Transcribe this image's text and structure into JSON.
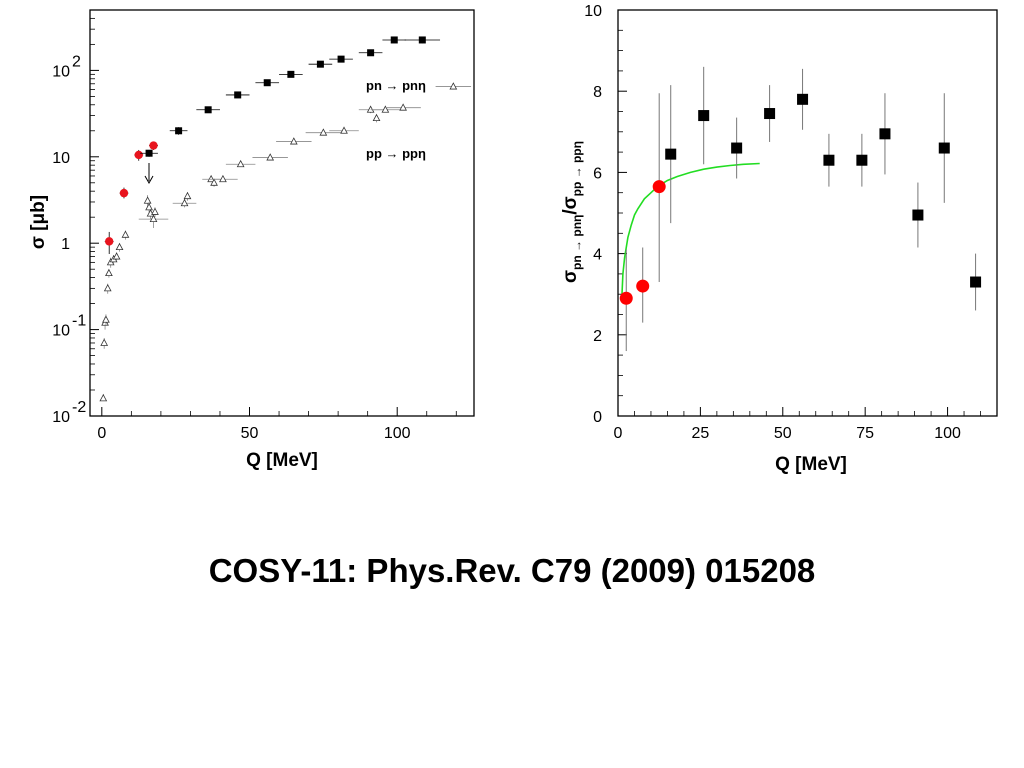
{
  "slide": {
    "citation": "COSY-11: Phys.Rev. C79 (2009) 015208"
  },
  "chart_data": [
    {
      "type": "scatter",
      "title": "",
      "xlabel": "Q [MeV]",
      "ylabel": "σ [μb]",
      "xlim": [
        -4,
        126
      ],
      "ylim": [
        0.01,
        500
      ],
      "yscale": "log",
      "grid": false,
      "x_ticks": [
        "0",
        "50",
        "100"
      ],
      "y_ticks": [
        "10",
        "10",
        "1",
        "10",
        "10"
      ],
      "y_tick_exponents": [
        "-2",
        "-1",
        "",
        "",
        "2"
      ],
      "annotations": [
        "pn → pnη",
        "pp → ppη"
      ],
      "colors": {
        "pn_cosy": "#e8141e",
        "pn_celsius": "#000000",
        "pp": "#444444"
      },
      "series": [
        {
          "marker": "red-circle",
          "points": [
            {
              "x": 2.5,
              "y": 1.05,
              "xerr": 1.5,
              "ylo": 0.75,
              "yhi": 1.35
            },
            {
              "x": 7.5,
              "y": 3.8,
              "xerr": 1.5,
              "ylo": 3.3,
              "yhi": 4.4
            },
            {
              "x": 12.5,
              "y": 10.5,
              "xerr": 1.5,
              "ylo": 9.0,
              "yhi": 12.0
            },
            {
              "x": 17.5,
              "y": 13.5,
              "xerr": 1.5,
              "ylo": 12.0,
              "yhi": 15.0
            }
          ]
        },
        {
          "marker": "black-square",
          "points": [
            {
              "x": 16,
              "y": 11,
              "xerr": 3,
              "ylo": 10,
              "yhi": 12
            },
            {
              "x": 26,
              "y": 20,
              "xerr": 3,
              "ylo": 18,
              "yhi": 22
            },
            {
              "x": 36,
              "y": 35,
              "xerr": 4,
              "ylo": 33,
              "yhi": 37
            },
            {
              "x": 46,
              "y": 52,
              "xerr": 4,
              "ylo": 49,
              "yhi": 55
            },
            {
              "x": 56,
              "y": 72,
              "xerr": 4,
              "ylo": 68,
              "yhi": 76
            },
            {
              "x": 64,
              "y": 90,
              "xerr": 4,
              "ylo": 85,
              "yhi": 95
            },
            {
              "x": 74,
              "y": 118,
              "xerr": 4,
              "ylo": 111,
              "yhi": 125
            },
            {
              "x": 81,
              "y": 135,
              "xerr": 4,
              "ylo": 127,
              "yhi": 143
            },
            {
              "x": 91,
              "y": 160,
              "xerr": 4,
              "ylo": 150,
              "yhi": 170
            },
            {
              "x": 99,
              "y": 225,
              "xerr": 4,
              "ylo": 212,
              "yhi": 238
            },
            {
              "x": 108.5,
              "y": 225,
              "xerr": 6,
              "ylo": 205,
              "yhi": 245
            }
          ]
        },
        {
          "marker": "open-triangle",
          "points": [
            {
              "x": 0.5,
              "y": 0.016,
              "xerr": 0,
              "ylo": 0.015,
              "yhi": 0.018
            },
            {
              "x": 0.8,
              "y": 0.07,
              "xerr": 0,
              "ylo": 0.06,
              "yhi": 0.08
            },
            {
              "x": 1.1,
              "y": 0.12,
              "xerr": 0,
              "ylo": 0.1,
              "yhi": 0.14
            },
            {
              "x": 1.4,
              "y": 0.13,
              "xerr": 0,
              "ylo": 0.11,
              "yhi": 0.15
            },
            {
              "x": 2.0,
              "y": 0.3,
              "xerr": 0,
              "ylo": 0.26,
              "yhi": 0.34
            },
            {
              "x": 2.4,
              "y": 0.45,
              "xerr": 0,
              "ylo": 0.4,
              "yhi": 0.5
            },
            {
              "x": 3.0,
              "y": 0.6,
              "xerr": 0,
              "ylo": 0.52,
              "yhi": 0.68
            },
            {
              "x": 4.0,
              "y": 0.65,
              "xerr": 0,
              "ylo": 0.57,
              "yhi": 0.73
            },
            {
              "x": 5.0,
              "y": 0.7,
              "xerr": 0,
              "ylo": 0.62,
              "yhi": 0.78
            },
            {
              "x": 6.0,
              "y": 0.9,
              "xerr": 0,
              "ylo": 0.8,
              "yhi": 1.0
            },
            {
              "x": 8.0,
              "y": 1.25,
              "xerr": 0,
              "ylo": 1.1,
              "yhi": 1.4
            },
            {
              "x": 15.5,
              "y": 3.1,
              "xerr": 0,
              "ylo": 2.6,
              "yhi": 3.6
            },
            {
              "x": 16.0,
              "y": 2.6,
              "xerr": 0,
              "ylo": 2.2,
              "yhi": 3.0
            },
            {
              "x": 16.5,
              "y": 2.2,
              "xerr": 0,
              "ylo": 1.9,
              "yhi": 2.5
            },
            {
              "x": 17.5,
              "y": 1.9,
              "xerr": 5,
              "ylo": 1.5,
              "yhi": 2.3
            },
            {
              "x": 18.0,
              "y": 2.3,
              "xerr": 0,
              "ylo": 2.0,
              "yhi": 2.6
            },
            {
              "x": 28.0,
              "y": 2.9,
              "xerr": 4,
              "ylo": 2.6,
              "yhi": 3.3
            },
            {
              "x": 29.0,
              "y": 3.5,
              "xerr": 0,
              "ylo": 3.1,
              "yhi": 3.9
            },
            {
              "x": 37.0,
              "y": 5.5,
              "xerr": 3,
              "ylo": 5.1,
              "yhi": 5.9
            },
            {
              "x": 38.0,
              "y": 5.0,
              "xerr": 0,
              "ylo": 4.5,
              "yhi": 5.5
            },
            {
              "x": 41.0,
              "y": 5.5,
              "xerr": 5,
              "ylo": 5.2,
              "yhi": 5.8
            },
            {
              "x": 47.0,
              "y": 8.2,
              "xerr": 5,
              "ylo": 7.7,
              "yhi": 8.7
            },
            {
              "x": 57.0,
              "y": 9.8,
              "xerr": 6,
              "ylo": 9.2,
              "yhi": 10.4
            },
            {
              "x": 65.0,
              "y": 15,
              "xerr": 6,
              "ylo": 14,
              "yhi": 16
            },
            {
              "x": 75.0,
              "y": 19,
              "xerr": 6,
              "ylo": 18,
              "yhi": 20
            },
            {
              "x": 82.0,
              "y": 20,
              "xerr": 5,
              "ylo": 19,
              "yhi": 21
            },
            {
              "x": 91.0,
              "y": 35,
              "xerr": 4,
              "ylo": 32,
              "yhi": 38
            },
            {
              "x": 93.0,
              "y": 28,
              "xerr": 0,
              "ylo": 25,
              "yhi": 31
            },
            {
              "x": 96.0,
              "y": 35,
              "xerr": 5,
              "ylo": 33,
              "yhi": 37
            },
            {
              "x": 102.0,
              "y": 37,
              "xerr": 6,
              "ylo": 35,
              "yhi": 39
            },
            {
              "x": 119.0,
              "y": 65,
              "xerr": 6,
              "ylo": 62,
              "yhi": 68
            }
          ]
        }
      ]
    },
    {
      "type": "scatter",
      "title": "",
      "xlabel": "Q [MeV]",
      "ylabel": "σpn → pnη/σpp → ppη",
      "xlim": [
        0,
        115
      ],
      "ylim": [
        0,
        10
      ],
      "grid": false,
      "x_ticks": [
        "0",
        "25",
        "50",
        "75",
        "100"
      ],
      "y_ticks": [
        "0",
        "2",
        "4",
        "6",
        "8",
        "10"
      ],
      "colors": {
        "curve": "#22dd22",
        "cosy": "#ff0000",
        "celsius": "#000000"
      },
      "curve": {
        "x": [
          1.2,
          1.5,
          2,
          3,
          4,
          5,
          6,
          8,
          10,
          12,
          15,
          18,
          22,
          26,
          30,
          34,
          38,
          43
        ],
        "y": [
          3.0,
          3.5,
          3.9,
          4.4,
          4.7,
          4.95,
          5.1,
          5.35,
          5.5,
          5.65,
          5.8,
          5.9,
          6.0,
          6.08,
          6.13,
          6.17,
          6.2,
          6.22
        ]
      },
      "series": [
        {
          "marker": "red-circle",
          "points": [
            {
              "x": 2.5,
              "y": 2.9,
              "ylo": 1.6,
              "yhi": 4.1
            },
            {
              "x": 7.5,
              "y": 3.2,
              "ylo": 2.3,
              "yhi": 4.15
            },
            {
              "x": 12.5,
              "y": 5.65,
              "ylo": 3.3,
              "yhi": 7.95
            }
          ]
        },
        {
          "marker": "black-square",
          "points": [
            {
              "x": 16,
              "y": 6.45,
              "ylo": 4.75,
              "yhi": 8.15
            },
            {
              "x": 26,
              "y": 7.4,
              "ylo": 6.2,
              "yhi": 8.6
            },
            {
              "x": 36,
              "y": 6.6,
              "ylo": 5.85,
              "yhi": 7.35
            },
            {
              "x": 46,
              "y": 7.45,
              "ylo": 6.75,
              "yhi": 8.15
            },
            {
              "x": 56,
              "y": 7.8,
              "ylo": 7.05,
              "yhi": 8.55
            },
            {
              "x": 64,
              "y": 6.3,
              "ylo": 5.65,
              "yhi": 6.95
            },
            {
              "x": 74,
              "y": 6.3,
              "ylo": 5.65,
              "yhi": 6.95
            },
            {
              "x": 81,
              "y": 6.95,
              "ylo": 5.95,
              "yhi": 7.95
            },
            {
              "x": 91,
              "y": 4.95,
              "ylo": 4.15,
              "yhi": 5.75
            },
            {
              "x": 99,
              "y": 6.6,
              "ylo": 5.25,
              "yhi": 7.95
            },
            {
              "x": 108.5,
              "y": 3.3,
              "ylo": 2.6,
              "yhi": 4.0
            }
          ]
        }
      ]
    }
  ]
}
